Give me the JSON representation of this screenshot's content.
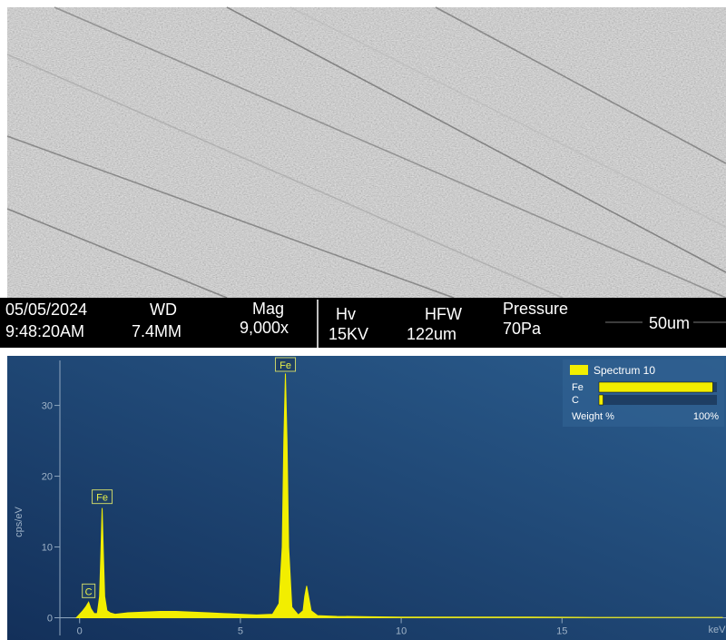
{
  "sem_info": {
    "date": "05/05/2024",
    "time": "9:48:20AM",
    "wd_label": "WD",
    "wd_value": "7.4MM",
    "mag_label": "Mag",
    "mag_value": "9,000x",
    "hv_label": "Hv",
    "hv_value": "15KV",
    "hfw_label": "HFW",
    "hfw_value": "122um",
    "pressure_label": "Pressure",
    "pressure_value": "70Pa",
    "scale_bar": "50um"
  },
  "chart_data": {
    "type": "area",
    "ylabel": "cps/eV",
    "xlabel": "keV",
    "color": "#f2ee00",
    "xlim": [
      -2.25,
      20.1
    ],
    "ylim": [
      -2.5,
      37
    ],
    "xticks": [
      0,
      5,
      10,
      15
    ],
    "yticks": [
      0,
      10,
      20,
      30
    ],
    "x": [
      -0.1,
      0,
      0.1,
      0.2,
      0.28,
      0.35,
      0.45,
      0.55,
      0.62,
      0.66,
      0.7,
      0.74,
      0.78,
      0.85,
      0.95,
      1.1,
      1.5,
      2,
      2.5,
      3,
      3.5,
      4,
      4.5,
      5,
      5.5,
      6,
      6.2,
      6.3,
      6.35,
      6.4,
      6.45,
      6.5,
      6.6,
      6.8,
      6.95,
      7.0,
      7.06,
      7.12,
      7.2,
      7.4,
      8,
      9,
      10,
      12,
      14,
      16,
      18,
      20
    ],
    "values": [
      0,
      0.5,
      1,
      1.6,
      2.2,
      1.3,
      0.6,
      0.6,
      3,
      9,
      15.5,
      9,
      3,
      1,
      0.7,
      0.5,
      0.7,
      0.8,
      0.9,
      0.9,
      0.8,
      0.7,
      0.6,
      0.5,
      0.4,
      0.5,
      2,
      10,
      25,
      34.5,
      25,
      10,
      1.5,
      0.4,
      1,
      3,
      4.5,
      3,
      1,
      0.3,
      0.2,
      0.15,
      0.1,
      0.1,
      0.1,
      0.05,
      0.05,
      0.05
    ],
    "annotations": [
      {
        "text": "C",
        "x": 0.28
      },
      {
        "text": "Fe",
        "x": 0.7
      },
      {
        "text": "Fe",
        "x": 6.4
      }
    ],
    "composition": {
      "title": "Spectrum 10",
      "unit_label": "Weight %",
      "max": {
        "value": 100,
        "label": "100%"
      },
      "elements": [
        {
          "name": "Fe",
          "value": 96.5
        },
        {
          "name": "C",
          "value": 3.5
        }
      ]
    }
  }
}
